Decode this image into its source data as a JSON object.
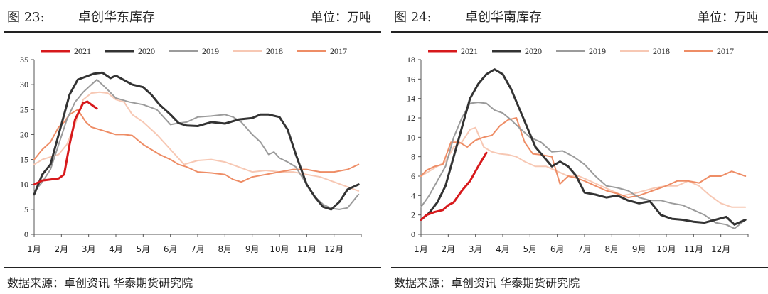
{
  "footer_text": "数据来源：卓创资讯 华泰期货研究院",
  "series_colors": {
    "2021": "#d7191c",
    "2020": "#333333",
    "2019": "#9b9b9b",
    "2018": "#f7c8b4",
    "2017": "#ee8d66"
  },
  "panels": [
    {
      "figure_label": "图 23:",
      "title": "卓创华东库存",
      "unit": "单位：万吨"
    },
    {
      "figure_label": "图 24:",
      "title": "卓创华南库存",
      "unit": "单位：万吨"
    }
  ],
  "chart_data": [
    {
      "type": "line",
      "title": "卓创华东库存",
      "x_unit": "month index (1 = 1月)",
      "x_tick_labels": [
        "1月",
        "2月",
        "3月",
        "4月",
        "5月",
        "6月",
        "7月",
        "8月",
        "9月",
        "10月",
        "11月",
        "12月"
      ],
      "ylim": [
        0,
        35
      ],
      "y_ticks": [
        0,
        5,
        10,
        15,
        20,
        25,
        30,
        35
      ],
      "legend_position": "top",
      "grid": false,
      "series": [
        {
          "name": "2021",
          "x": [
            1.0,
            1.3,
            1.6,
            1.9,
            2.1,
            2.3,
            2.5,
            2.8,
            2.95,
            3.1,
            3.3
          ],
          "y": [
            10,
            10.8,
            11,
            11.2,
            12,
            18,
            23,
            26.3,
            26.6,
            26,
            25.2
          ]
        },
        {
          "name": "2020",
          "x": [
            1.0,
            1.3,
            1.6,
            1.9,
            2.1,
            2.3,
            2.6,
            2.9,
            3.2,
            3.5,
            3.8,
            4.0,
            4.2,
            4.6,
            5.0,
            5.3,
            5.6,
            6.0,
            6.3,
            6.6,
            7.0,
            7.5,
            8.0,
            8.5,
            9.0,
            9.3,
            9.6,
            10.0,
            10.3,
            10.6,
            11.0,
            11.3,
            11.6,
            11.9,
            12.2,
            12.5,
            12.9
          ],
          "y": [
            8,
            12,
            14,
            20,
            24,
            28,
            31,
            31.6,
            32.2,
            32.4,
            31.3,
            31.8,
            31.2,
            30,
            29.5,
            28,
            26,
            24,
            22.3,
            21.8,
            21.7,
            22.5,
            22.2,
            23,
            23.3,
            24,
            24,
            23.5,
            21,
            16,
            10,
            7.5,
            5.5,
            5,
            6.5,
            9,
            10
          ]
        },
        {
          "name": "2019",
          "x": [
            1.0,
            1.3,
            1.6,
            1.9,
            2.2,
            2.5,
            2.8,
            3.1,
            3.3,
            3.6,
            4.0,
            4.5,
            5.0,
            5.5,
            6.0,
            6.3,
            6.6,
            7.0,
            7.5,
            8.0,
            8.3,
            8.6,
            9.0,
            9.3,
            9.6,
            9.8,
            10.0,
            10.3,
            10.6,
            11.0,
            11.3,
            11.6,
            11.9,
            12.2,
            12.5,
            12.9
          ],
          "y": [
            8.5,
            10.5,
            13,
            18,
            23,
            26.5,
            28.5,
            30,
            31,
            29.5,
            27.3,
            26.5,
            26,
            25,
            22,
            22.3,
            22.5,
            23.5,
            23.7,
            24,
            23.5,
            22.5,
            20,
            18.5,
            16,
            16.5,
            15.3,
            14.5,
            13.5,
            10,
            7.5,
            6,
            5.2,
            5,
            5.3,
            8
          ]
        },
        {
          "name": "2018",
          "x": [
            1.0,
            1.3,
            1.6,
            1.9,
            2.2,
            2.5,
            2.8,
            3.1,
            3.4,
            3.7,
            4.0,
            4.3,
            4.6,
            5.0,
            5.5,
            6.0,
            6.5,
            7.0,
            7.5,
            8.0,
            8.5,
            9.0,
            9.5,
            10.0,
            10.5,
            11.0,
            11.5,
            12.0,
            12.5,
            12.9
          ],
          "y": [
            14,
            15,
            15.5,
            16,
            18,
            22,
            27,
            28.3,
            28.5,
            28.3,
            27,
            26.5,
            24,
            22.5,
            20,
            17,
            14,
            14.8,
            15,
            14.5,
            13.5,
            12.5,
            12.8,
            12.5,
            12.5,
            12,
            11.5,
            10.5,
            9.5,
            8.7
          ]
        },
        {
          "name": "2017",
          "x": [
            1.0,
            1.3,
            1.6,
            1.9,
            2.1,
            2.3,
            2.6,
            2.9,
            3.1,
            3.4,
            3.7,
            4.0,
            4.3,
            4.6,
            5.0,
            5.3,
            5.6,
            6.0,
            6.3,
            6.6,
            7.0,
            7.5,
            8.0,
            8.3,
            8.6,
            9.0,
            9.5,
            10.0,
            10.5,
            11.0,
            11.5,
            12.0,
            12.5,
            12.9
          ],
          "y": [
            15,
            17,
            18.5,
            21.5,
            22.5,
            24,
            25,
            22.5,
            21.5,
            21,
            20.5,
            20,
            20,
            19.8,
            18,
            17,
            16,
            15,
            14,
            13.5,
            12.5,
            12.3,
            12,
            11,
            10.5,
            11.5,
            12,
            12.5,
            13,
            13,
            12.5,
            12.5,
            13,
            14
          ]
        }
      ]
    },
    {
      "type": "line",
      "title": "卓创华南库存",
      "x_unit": "month index (1 = 1月)",
      "x_tick_labels": [
        "1月",
        "2月",
        "3月",
        "4月",
        "5月",
        "6月",
        "7月",
        "8月",
        "9月",
        "10月",
        "11月",
        "12月"
      ],
      "ylim": [
        0,
        18
      ],
      "y_ticks": [
        0,
        2,
        4,
        6,
        8,
        10,
        12,
        14,
        16,
        18
      ],
      "legend_position": "top",
      "grid": false,
      "series": [
        {
          "name": "2021",
          "x": [
            1.0,
            1.2,
            1.5,
            1.8,
            2.0,
            2.2,
            2.5,
            2.8,
            3.1,
            3.4
          ],
          "y": [
            1.5,
            2,
            2.3,
            2.5,
            3,
            3.3,
            4.5,
            5.5,
            7,
            8.4
          ]
        },
        {
          "name": "2020",
          "x": [
            1.0,
            1.3,
            1.6,
            1.9,
            2.2,
            2.5,
            2.8,
            3.1,
            3.4,
            3.7,
            4.0,
            4.3,
            4.6,
            4.9,
            5.2,
            5.5,
            5.8,
            6.1,
            6.4,
            6.7,
            7.0,
            7.4,
            7.8,
            8.2,
            8.6,
            9.0,
            9.4,
            9.8,
            10.2,
            10.6,
            11.0,
            11.4,
            11.8,
            12.2,
            12.5,
            12.9
          ],
          "y": [
            1.5,
            2.2,
            3.3,
            5,
            8,
            11,
            14,
            15.5,
            16.5,
            17,
            16.5,
            15,
            13,
            11,
            9,
            8,
            7,
            7.5,
            7,
            6,
            4.3,
            4.1,
            3.8,
            4,
            3.5,
            3.2,
            3.4,
            2,
            1.6,
            1.5,
            1.3,
            1.2,
            1.5,
            1.8,
            1,
            1.5
          ]
        },
        {
          "name": "2019",
          "x": [
            1.0,
            1.3,
            1.6,
            1.9,
            2.2,
            2.5,
            2.8,
            3.1,
            3.4,
            3.7,
            4.0,
            4.3,
            4.6,
            5.0,
            5.4,
            5.8,
            6.2,
            6.6,
            7.0,
            7.4,
            7.8,
            8.2,
            8.6,
            9.0,
            9.4,
            9.8,
            10.2,
            10.6,
            11.0,
            11.4,
            11.8,
            12.2,
            12.5,
            12.9
          ],
          "y": [
            2.8,
            4,
            5.5,
            7,
            10,
            12,
            13.5,
            13.6,
            13.5,
            12.8,
            12.5,
            11.8,
            11,
            10,
            9.5,
            8.5,
            8.6,
            8,
            7.2,
            6,
            5,
            4.8,
            4.5,
            3.8,
            3.5,
            3.5,
            3.2,
            3,
            2.5,
            2,
            1.2,
            1,
            0.6,
            1.5
          ]
        },
        {
          "name": "2018",
          "x": [
            1.0,
            1.3,
            1.6,
            1.9,
            2.2,
            2.5,
            2.8,
            3.0,
            3.3,
            3.6,
            3.9,
            4.2,
            4.5,
            4.8,
            5.2,
            5.6,
            6.0,
            6.4,
            6.8,
            7.2,
            7.6,
            8.0,
            8.4,
            8.8,
            9.2,
            9.6,
            10.0,
            10.4,
            10.8,
            11.2,
            11.6,
            12.0,
            12.4,
            12.9
          ],
          "y": [
            6,
            6.5,
            7,
            7.5,
            9,
            9.5,
            10.8,
            11,
            9,
            8.5,
            8.3,
            8.2,
            8,
            7.5,
            7,
            7,
            6.5,
            6,
            6,
            5.5,
            5,
            4.5,
            4,
            4.2,
            4.5,
            4.8,
            5,
            5,
            5.5,
            5,
            4,
            3.2,
            2.8,
            2.8
          ]
        },
        {
          "name": "2017",
          "x": [
            1.0,
            1.2,
            1.5,
            1.8,
            2.1,
            2.4,
            2.7,
            3.0,
            3.3,
            3.6,
            3.9,
            4.2,
            4.5,
            4.8,
            5.1,
            5.4,
            5.8,
            6.1,
            6.4,
            6.7,
            7.0,
            7.4,
            7.8,
            8.2,
            8.6,
            9.0,
            9.5,
            10.0,
            10.4,
            10.8,
            11.2,
            11.6,
            12.0,
            12.4,
            12.9
          ],
          "y": [
            6,
            6.6,
            7,
            7.2,
            9.5,
            9.5,
            9,
            9.7,
            10,
            10.2,
            11.2,
            11.8,
            12,
            9.5,
            8.3,
            8.2,
            8,
            5.2,
            6,
            5.8,
            5.5,
            5,
            4.5,
            4.2,
            3.8,
            4,
            4.5,
            5,
            5.5,
            5.5,
            5.3,
            6,
            6,
            6.5,
            6
          ]
        }
      ]
    }
  ]
}
